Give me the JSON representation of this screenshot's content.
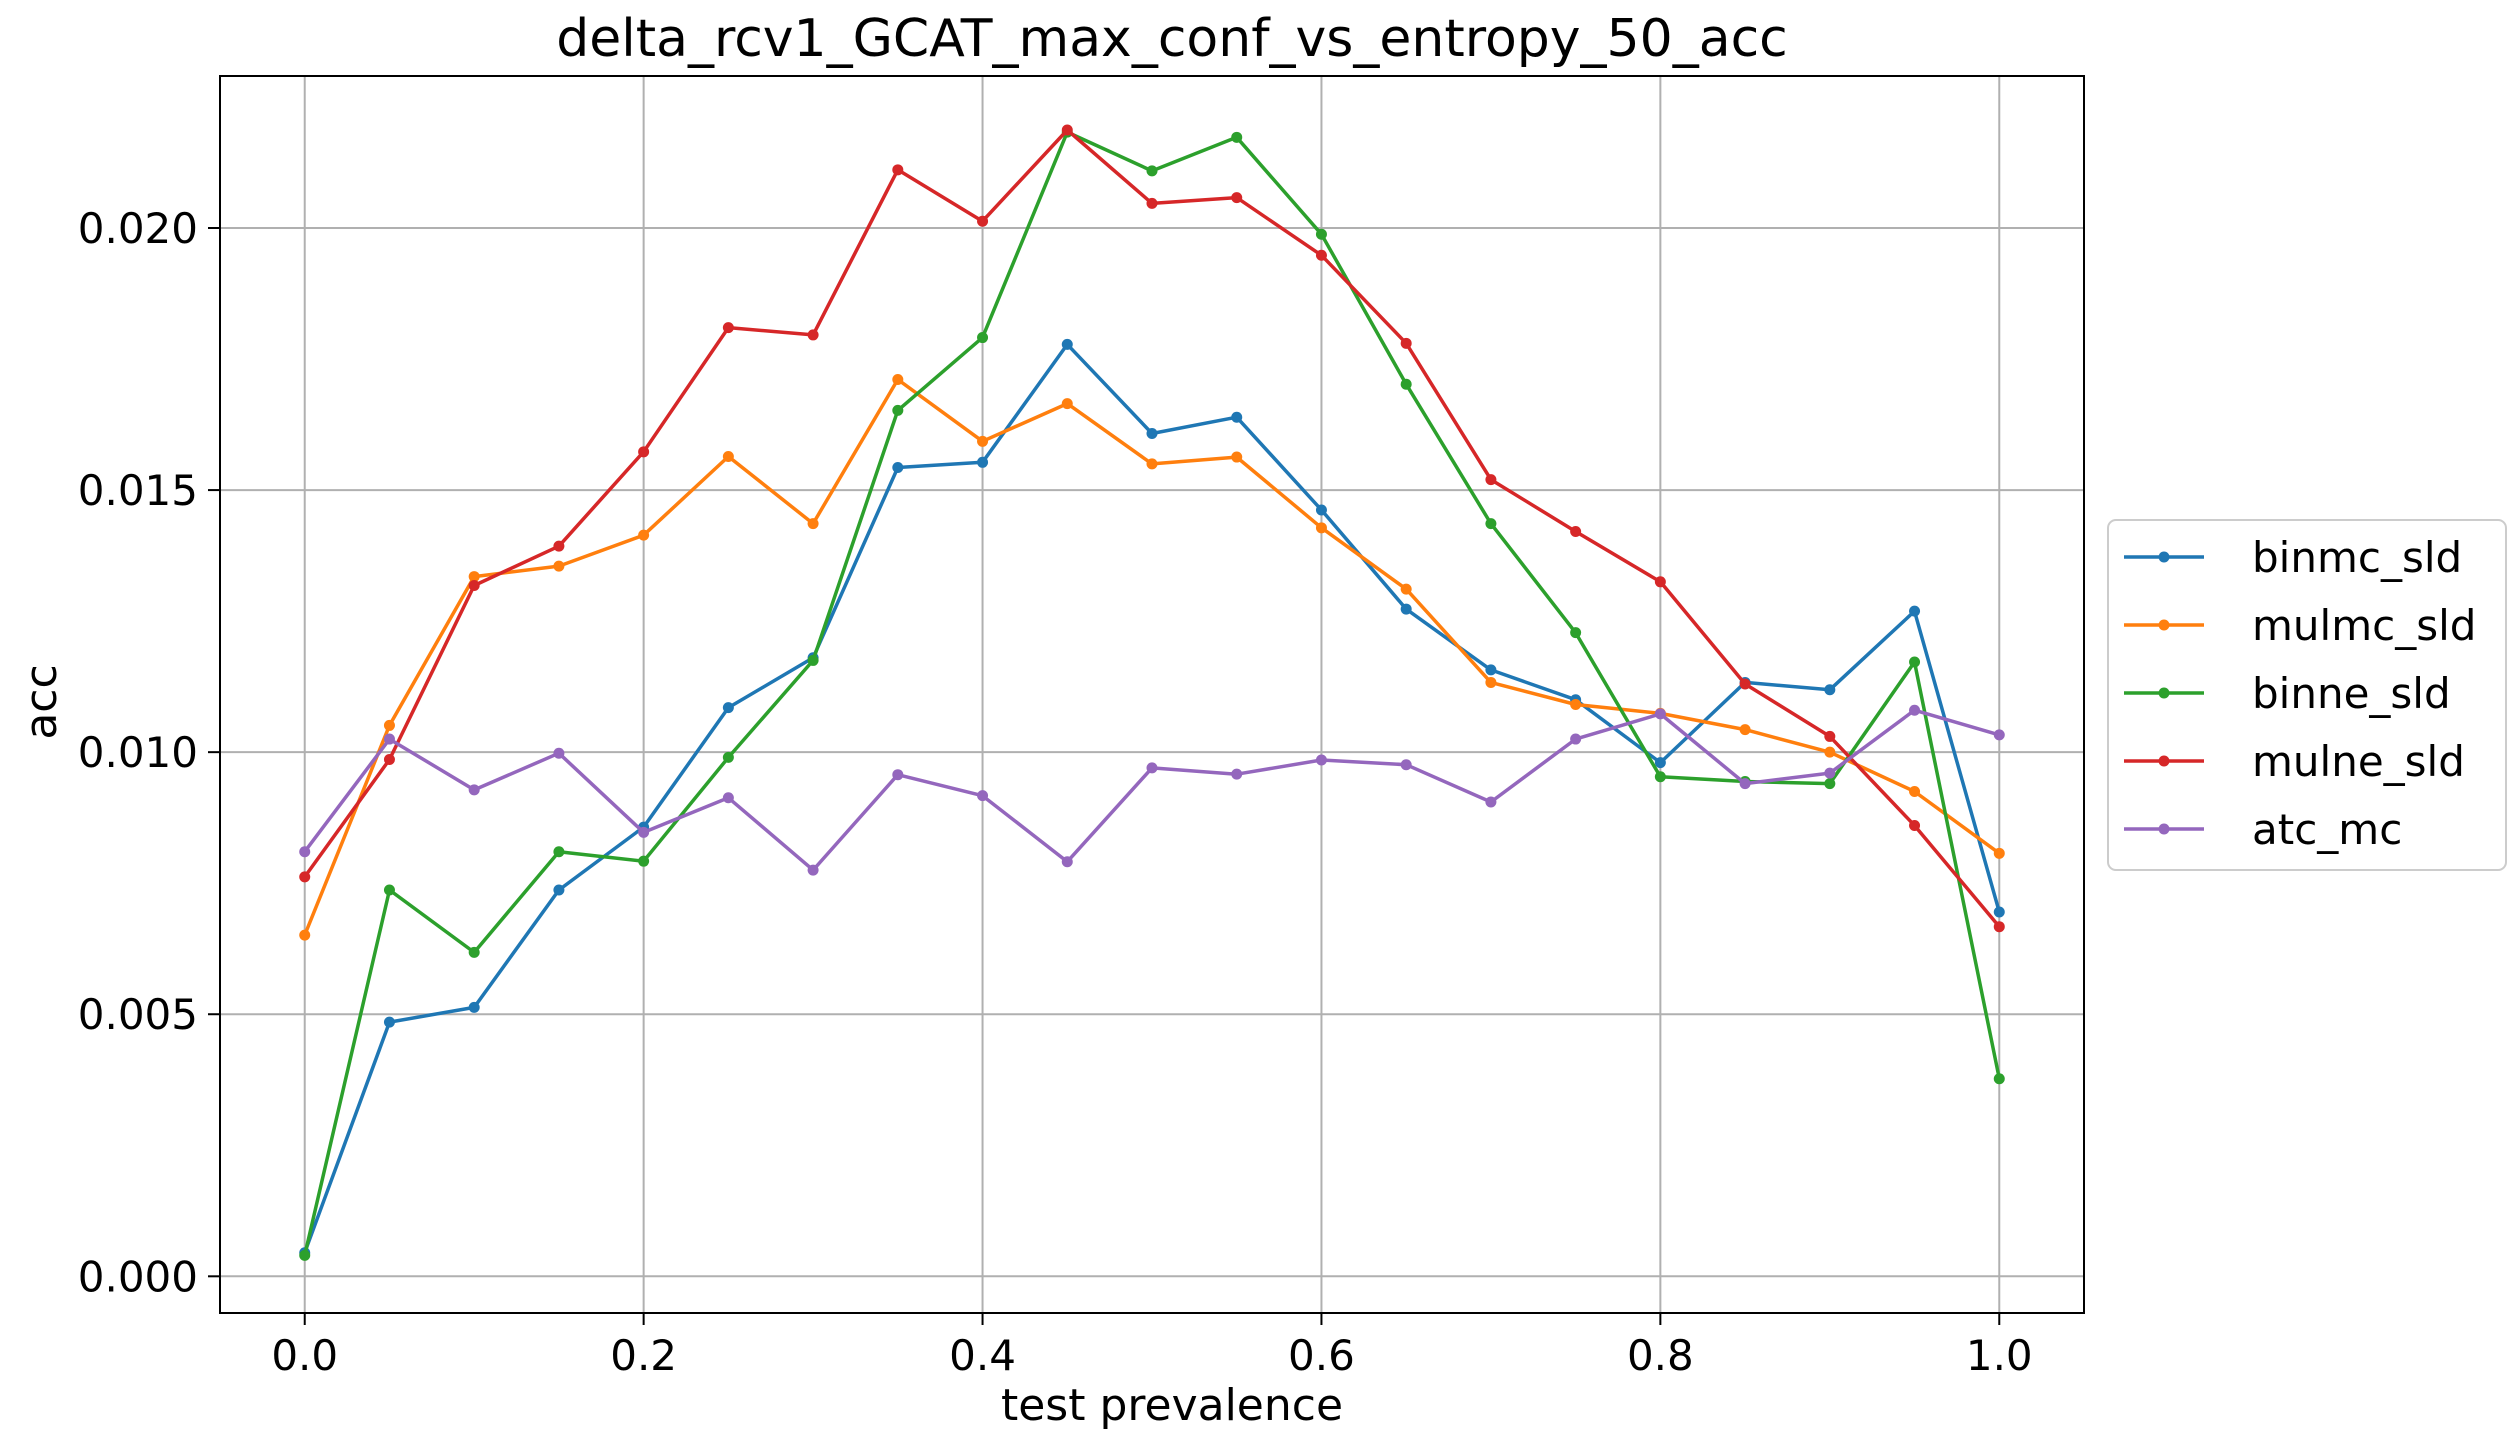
{
  "chart_data": {
    "type": "line",
    "title": "delta_rcv1_GCAT_max_conf_vs_entropy_50_acc",
    "xlabel": "test prevalence",
    "ylabel": "acc",
    "xlim": [
      -0.05,
      1.05
    ],
    "ylim": [
      -0.0007,
      0.0229
    ],
    "grid": true,
    "legend_position": "right",
    "x": [
      0.0,
      0.05,
      0.1,
      0.15,
      0.2,
      0.25,
      0.3,
      0.35,
      0.4,
      0.45,
      0.5,
      0.55,
      0.6,
      0.65,
      0.7,
      0.75,
      0.8,
      0.85,
      0.9,
      0.95,
      1.0
    ],
    "x_ticks": [
      {
        "value": 0.0,
        "label": "0.0"
      },
      {
        "value": 0.2,
        "label": "0.2"
      },
      {
        "value": 0.4,
        "label": "0.4"
      },
      {
        "value": 0.6,
        "label": "0.6"
      },
      {
        "value": 0.8,
        "label": "0.8"
      },
      {
        "value": 1.0,
        "label": "1.0"
      }
    ],
    "y_ticks": [
      {
        "value": 0.0,
        "label": "0.000"
      },
      {
        "value": 0.005,
        "label": "0.005"
      },
      {
        "value": 0.01,
        "label": "0.010"
      },
      {
        "value": 0.015,
        "label": "0.015"
      },
      {
        "value": 0.02,
        "label": "0.020"
      }
    ],
    "series": [
      {
        "name": "binmc_sld",
        "color": "#1f77b4",
        "values": [
          0.00045,
          0.00485,
          0.00513,
          0.00737,
          0.00857,
          0.01085,
          0.0118,
          0.01543,
          0.01553,
          0.01778,
          0.01608,
          0.01639,
          0.01462,
          0.01273,
          0.01157,
          0.011,
          0.0098,
          0.01133,
          0.01119,
          0.01269,
          0.00695
        ]
      },
      {
        "name": "mulmc_sld",
        "color": "#ff7f0e",
        "values": [
          0.00651,
          0.01051,
          0.01335,
          0.01355,
          0.01414,
          0.01564,
          0.01436,
          0.01711,
          0.01593,
          0.01665,
          0.0155,
          0.01563,
          0.01428,
          0.01311,
          0.01133,
          0.01091,
          0.01074,
          0.01043,
          0.01,
          0.00925,
          0.00807
        ]
      },
      {
        "name": "binne_sld",
        "color": "#2ca02c",
        "values": [
          0.0004,
          0.00737,
          0.00618,
          0.0081,
          0.00792,
          0.0099,
          0.01175,
          0.01652,
          0.01791,
          0.02183,
          0.02109,
          0.02173,
          0.01988,
          0.01702,
          0.01436,
          0.01228,
          0.00953,
          0.00944,
          0.0094,
          0.01172,
          0.00377
        ]
      },
      {
        "name": "mulne_sld",
        "color": "#d62728",
        "values": [
          0.00762,
          0.00986,
          0.01318,
          0.01393,
          0.01573,
          0.0181,
          0.01796,
          0.02111,
          0.02013,
          0.02187,
          0.02047,
          0.02058,
          0.01948,
          0.0178,
          0.0152,
          0.01421,
          0.01325,
          0.0113,
          0.0103,
          0.0086,
          0.00667
        ]
      },
      {
        "name": "atc_mc",
        "color": "#9467bd",
        "values": [
          0.0081,
          0.01025,
          0.00928,
          0.00998,
          0.00847,
          0.00913,
          0.00775,
          0.00957,
          0.00917,
          0.00791,
          0.0097,
          0.00958,
          0.00985,
          0.00976,
          0.00905,
          0.01025,
          0.01073,
          0.0094,
          0.0096,
          0.0108,
          0.01033
        ]
      }
    ]
  }
}
